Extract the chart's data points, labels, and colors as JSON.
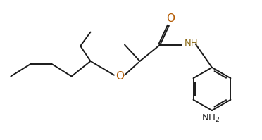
{
  "bg_color": "#ffffff",
  "line_color": "#1a1a1a",
  "o_color": "#b35900",
  "n_color": "#8B6914",
  "line_width": 1.4,
  "font_size": 9.5,
  "xlim": [
    0,
    10.0
  ],
  "ylim": [
    0,
    5.5
  ]
}
